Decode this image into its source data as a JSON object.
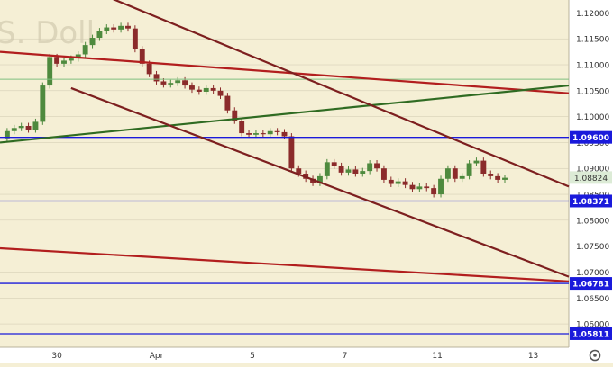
{
  "chart_data": {
    "type": "candlestick",
    "watermark": "S. Doll",
    "colors": {
      "background": "#f5efd5",
      "axis_bg": "#ffffff",
      "up_candle": "#4e8a3e",
      "down_candle": "#8b2b2b",
      "blue_level": "#1a1adb",
      "red_trend": "#b21e1e",
      "maroon_trend": "#7d1f1f",
      "green_trend": "#2f6b22",
      "grid": "#cfc8b0"
    },
    "y_range": [
      1.0555,
      1.1225
    ],
    "y_ticks": [
      "1.12000",
      "1.11500",
      "1.11000",
      "1.10500",
      "1.10000",
      "1.09500",
      "1.09000",
      "1.08500",
      "1.08000",
      "1.07500",
      "1.07000",
      "1.06500",
      "1.06000"
    ],
    "x_ticks": [
      {
        "label": "30",
        "x": 8
      },
      {
        "label": "Apr",
        "x": 22
      },
      {
        "label": "5",
        "x": 35.5
      },
      {
        "label": "7",
        "x": 48.5
      },
      {
        "label": "11",
        "x": 61.5
      },
      {
        "label": "13",
        "x": 75
      }
    ],
    "x_range": [
      0,
      80
    ],
    "price_levels": [
      {
        "label": "1.09600",
        "value": 1.096
      },
      {
        "label": "1.08371",
        "value": 1.08371
      },
      {
        "label": "1.06781",
        "value": 1.06781
      },
      {
        "label": "1.05811",
        "value": 1.05811
      }
    ],
    "current_price": {
      "label": "1.08824",
      "value": 1.08824
    },
    "trend_lines": [
      {
        "color": "red",
        "from": [
          0,
          1.1125
        ],
        "to": [
          80,
          1.1045
        ]
      },
      {
        "color": "red",
        "from": [
          0,
          1.0746
        ],
        "to": [
          80,
          1.0682
        ]
      },
      {
        "color": "green",
        "from": [
          0,
          1.095
        ],
        "to": [
          80,
          1.106
        ]
      },
      {
        "color": "maroon",
        "from": [
          10,
          1.126
        ],
        "to": [
          80,
          1.0865
        ]
      },
      {
        "color": "maroon",
        "from": [
          10,
          1.1055
        ],
        "to": [
          80,
          1.0691
        ]
      }
    ],
    "green_hline": 1.1072,
    "close_path": [
      [
        0,
        1.0958
      ],
      [
        1,
        1.0972
      ],
      [
        2,
        1.0978
      ],
      [
        3,
        1.0982
      ],
      [
        4,
        1.0975
      ],
      [
        5,
        1.099
      ],
      [
        6,
        1.106
      ],
      [
        7,
        1.1115
      ],
      [
        8,
        1.1102
      ],
      [
        9,
        1.1108
      ],
      [
        10,
        1.1112
      ],
      [
        11,
        1.112
      ],
      [
        12,
        1.1138
      ],
      [
        13,
        1.1152
      ],
      [
        14,
        1.1165
      ],
      [
        15,
        1.1172
      ],
      [
        16,
        1.1168
      ],
      [
        17,
        1.1175
      ],
      [
        18,
        1.117
      ],
      [
        19,
        1.113
      ],
      [
        20,
        1.1102
      ],
      [
        21,
        1.1082
      ],
      [
        22,
        1.1068
      ],
      [
        23,
        1.1062
      ],
      [
        24,
        1.1065
      ],
      [
        25,
        1.107
      ],
      [
        26,
        1.106
      ],
      [
        27,
        1.1052
      ],
      [
        28,
        1.1048
      ],
      [
        29,
        1.1055
      ],
      [
        30,
        1.105
      ],
      [
        31,
        1.104
      ],
      [
        32,
        1.1012
      ],
      [
        33,
        1.0992
      ],
      [
        34,
        1.0968
      ],
      [
        35,
        1.0965
      ],
      [
        36,
        1.0968
      ],
      [
        37,
        1.0966
      ],
      [
        38,
        1.0972
      ],
      [
        39,
        1.097
      ],
      [
        40,
        1.0962
      ],
      [
        41,
        1.09
      ],
      [
        42,
        1.089
      ],
      [
        43,
        1.088
      ],
      [
        44,
        1.0872
      ],
      [
        45,
        1.0885
      ],
      [
        46,
        1.0912
      ],
      [
        47,
        1.0905
      ],
      [
        48,
        1.0892
      ],
      [
        49,
        1.0898
      ],
      [
        50,
        1.089
      ],
      [
        51,
        1.0895
      ],
      [
        52,
        1.091
      ],
      [
        53,
        1.09
      ],
      [
        54,
        1.0878
      ],
      [
        55,
        1.087
      ],
      [
        56,
        1.0875
      ],
      [
        57,
        1.0868
      ],
      [
        58,
        1.086
      ],
      [
        59,
        1.0865
      ],
      [
        60,
        1.0862
      ],
      [
        61,
        1.085
      ],
      [
        62,
        1.088
      ],
      [
        63,
        1.09
      ],
      [
        64,
        1.088
      ],
      [
        65,
        1.0885
      ],
      [
        66,
        1.091
      ],
      [
        67,
        1.0915
      ],
      [
        68,
        1.089
      ],
      [
        69,
        1.0885
      ],
      [
        70,
        1.0878
      ],
      [
        71,
        1.0882
      ]
    ]
  }
}
